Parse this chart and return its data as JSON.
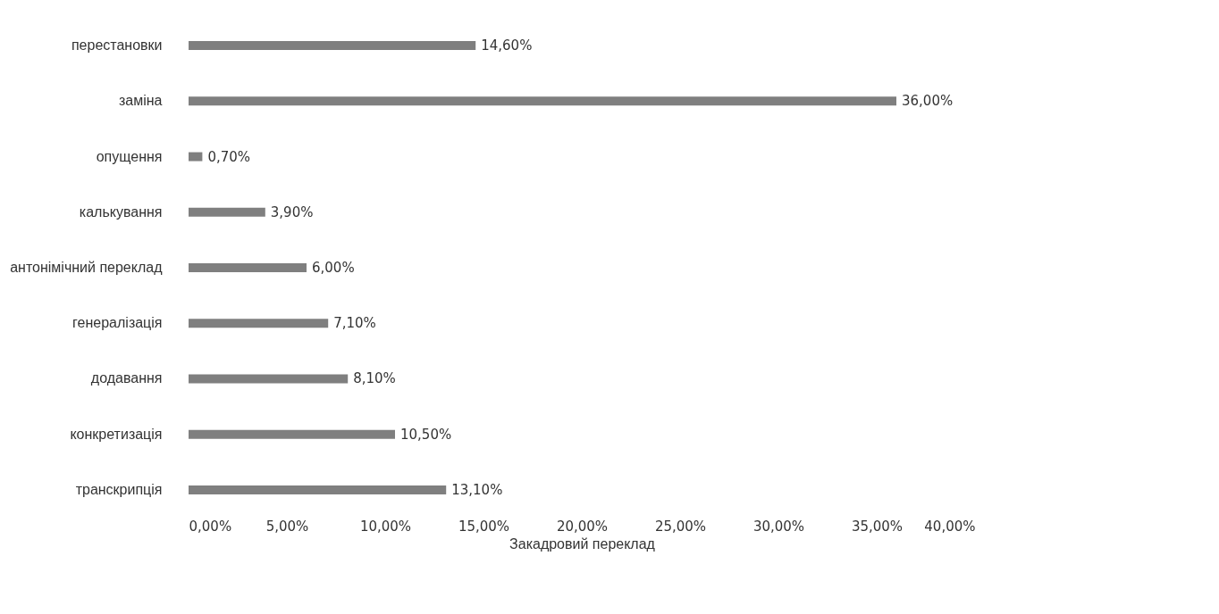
{
  "chart_data": {
    "type": "bar",
    "orientation": "horizontal",
    "xlabel": "Закадровий переклад",
    "categories": [
      "перестановки",
      "заміна",
      "опущення",
      "калькування",
      "антонімічний переклад",
      "генералізація",
      "додавання",
      "конкретизація",
      "транскрипція"
    ],
    "values": [
      14.6,
      36.0,
      0.7,
      3.9,
      6.0,
      7.1,
      8.1,
      10.5,
      13.1
    ],
    "value_labels": [
      "14,60%",
      "36,00%",
      "0,70%",
      "3,90%",
      "6,00%",
      "7,10%",
      "8,10%",
      "10,50%",
      "13,10%"
    ],
    "color": "#7f7f7f",
    "xlim": [
      0,
      40
    ],
    "xticks": [
      {
        "value": 0,
        "label": "0,00%"
      },
      {
        "value": 5,
        "label": "5,00%"
      },
      {
        "value": 10,
        "label": "10,00%"
      },
      {
        "value": 15,
        "label": "15,00%"
      },
      {
        "value": 20,
        "label": "20,00%"
      },
      {
        "value": 25,
        "label": "25,00%"
      },
      {
        "value": 30,
        "label": "30,00%"
      },
      {
        "value": 35,
        "label": "35,00%"
      },
      {
        "value": 40,
        "label": "40,00%"
      }
    ],
    "grid": false
  }
}
